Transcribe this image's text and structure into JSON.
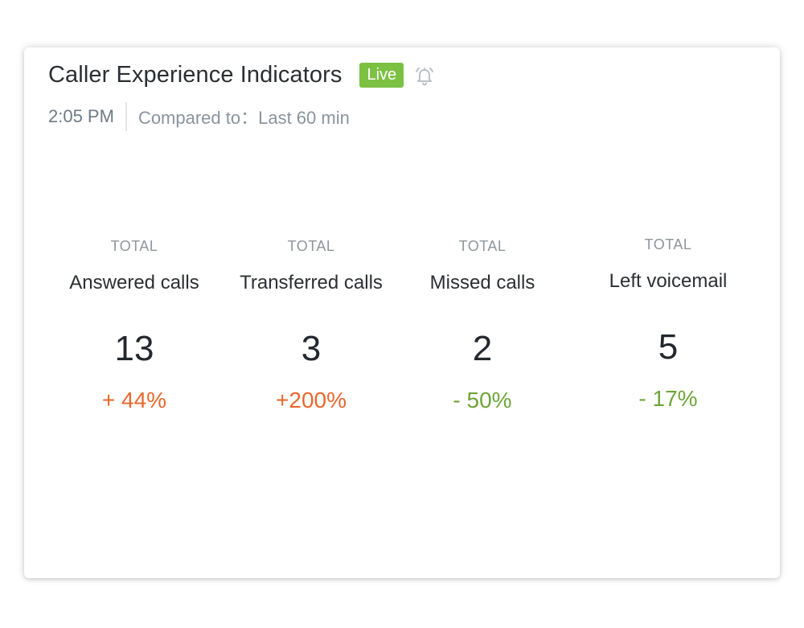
{
  "widget": {
    "title": "Caller Experience Indicators",
    "live_badge": "Live",
    "alert_icon": "bell-icon",
    "time": "2:05 PM",
    "compared_to": "Compared to：Last 60 min"
  },
  "metrics": [
    {
      "caption": "TOTAL",
      "label": "Answered calls",
      "value": "13",
      "change": "+ 44%",
      "trend": "up"
    },
    {
      "caption": "TOTAL",
      "label": "Transferred calls",
      "value": "3",
      "change": "+200%",
      "trend": "up"
    },
    {
      "caption": "TOTAL",
      "label": "Missed calls",
      "value": "2",
      "change": "- 50%",
      "trend": "down"
    },
    {
      "caption": "TOTAL",
      "label": "Left voicemail",
      "value": "5",
      "change": "- 17%",
      "trend": "down"
    }
  ],
  "colors": {
    "live": "#7cc142",
    "increase": "#e8672c",
    "decrease": "#6ea53a"
  }
}
